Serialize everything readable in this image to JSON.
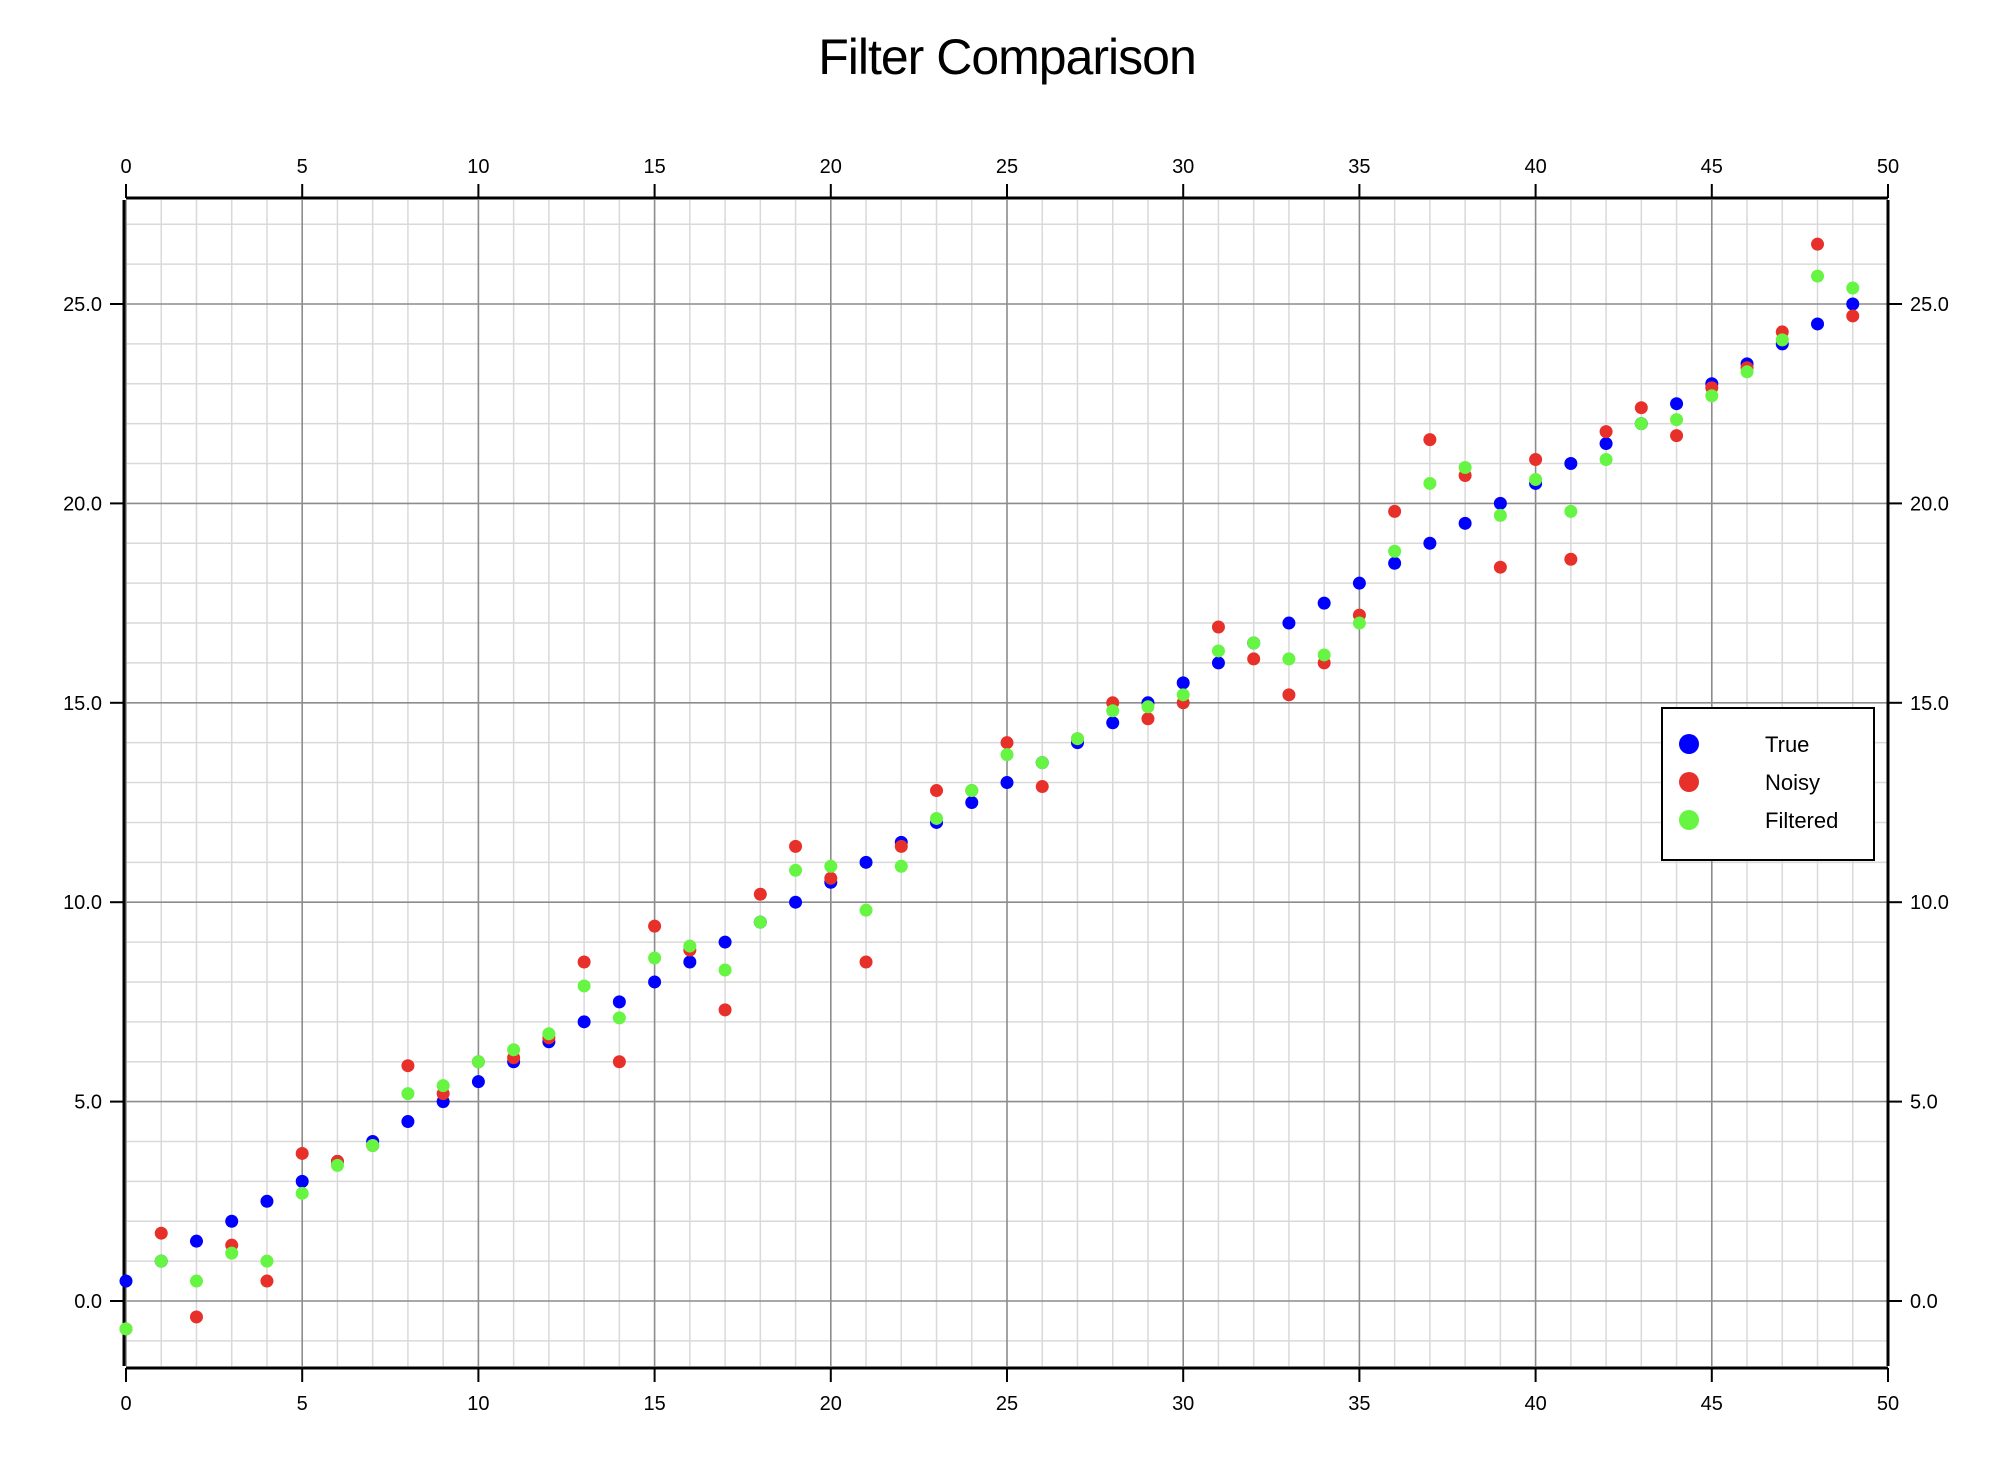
{
  "chart_data": {
    "type": "scatter",
    "title": "Filter Comparison",
    "xlabel": "",
    "ylabel": "",
    "xlim": [
      0,
      50
    ],
    "ylim": [
      -1.6,
      27.6
    ],
    "x_ticks": [
      0,
      5,
      10,
      15,
      20,
      25,
      30,
      35,
      40,
      45,
      50
    ],
    "y_ticks": [
      "0.0",
      "5.0",
      "10.0",
      "15.0",
      "20.0",
      "25.0"
    ],
    "y_tick_values": [
      0,
      5,
      10,
      15,
      20,
      25
    ],
    "grid": true,
    "mirrored_axes": true,
    "legend_position": "right-middle",
    "x": [
      0,
      1,
      2,
      3,
      4,
      5,
      6,
      7,
      8,
      9,
      10,
      11,
      12,
      13,
      14,
      15,
      16,
      17,
      18,
      19,
      20,
      21,
      22,
      23,
      24,
      25,
      26,
      27,
      28,
      29,
      30,
      31,
      32,
      33,
      34,
      35,
      36,
      37,
      38,
      39,
      40,
      41,
      42,
      43,
      44,
      45,
      46,
      47,
      48,
      49
    ],
    "series": [
      {
        "name": "True",
        "color": "#0000ff",
        "values": [
          0.5,
          1.0,
          1.5,
          2.0,
          2.5,
          3.0,
          3.5,
          4.0,
          4.5,
          5.0,
          5.5,
          6.0,
          6.5,
          7.0,
          7.5,
          8.0,
          8.5,
          9.0,
          9.5,
          10.0,
          10.5,
          11.0,
          11.5,
          12.0,
          12.5,
          13.0,
          13.5,
          14.0,
          14.5,
          15.0,
          15.5,
          16.0,
          16.5,
          17.0,
          17.5,
          18.0,
          18.5,
          19.0,
          19.5,
          20.0,
          20.5,
          21.0,
          21.5,
          22.0,
          22.5,
          23.0,
          23.5,
          24.0,
          24.5,
          25.0
        ]
      },
      {
        "name": "Noisy",
        "color": "#e8302a",
        "values": [
          -0.7,
          1.7,
          -0.4,
          1.4,
          0.5,
          3.7,
          3.5,
          3.9,
          5.9,
          5.2,
          6.0,
          6.1,
          6.6,
          8.5,
          6.0,
          9.4,
          8.8,
          7.3,
          10.2,
          11.4,
          10.6,
          8.5,
          11.4,
          12.8,
          12.8,
          14.0,
          12.9,
          14.1,
          15.0,
          14.6,
          15.0,
          16.9,
          16.1,
          15.2,
          16.0,
          17.2,
          19.8,
          21.6,
          20.7,
          18.4,
          21.1,
          18.6,
          21.8,
          22.4,
          21.7,
          22.9,
          23.4,
          24.3,
          26.5,
          24.7
        ]
      },
      {
        "name": "Filtered",
        "color": "#66f542",
        "values": [
          -0.7,
          1.0,
          0.5,
          1.2,
          1.0,
          2.7,
          3.4,
          3.9,
          5.2,
          5.4,
          6.0,
          6.3,
          6.7,
          7.9,
          7.1,
          8.6,
          8.9,
          8.3,
          9.5,
          10.8,
          10.9,
          9.8,
          10.9,
          12.1,
          12.8,
          13.7,
          13.5,
          14.1,
          14.8,
          14.9,
          15.2,
          16.3,
          16.5,
          16.1,
          16.2,
          17.0,
          18.8,
          20.5,
          20.9,
          19.7,
          20.6,
          19.8,
          21.1,
          22.0,
          22.1,
          22.7,
          23.3,
          24.1,
          25.7,
          25.4
        ]
      }
    ]
  },
  "legend": {
    "items": [
      {
        "label": "True",
        "color": "#0000ff"
      },
      {
        "label": "Noisy",
        "color": "#e8302a"
      },
      {
        "label": "Filtered",
        "color": "#66f542"
      }
    ]
  }
}
